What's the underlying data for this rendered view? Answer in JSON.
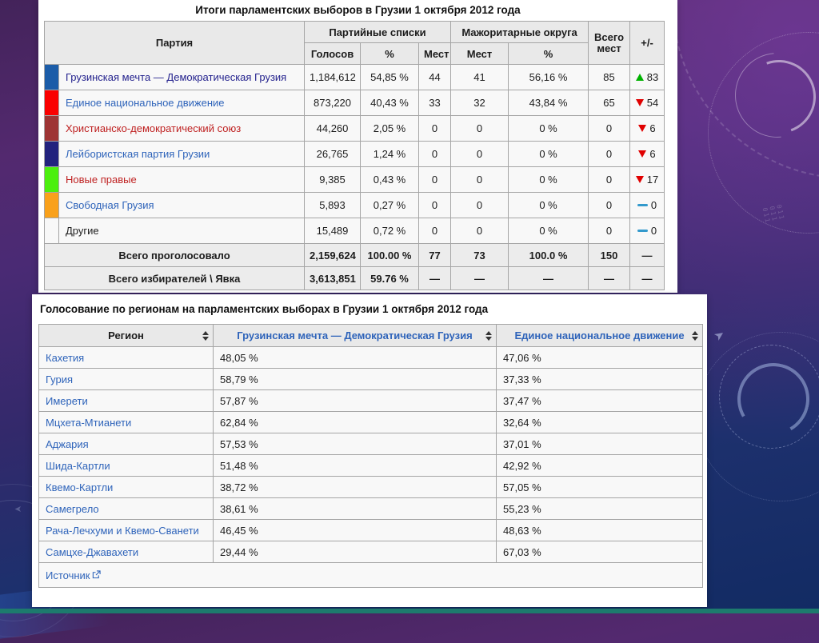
{
  "background": {
    "decor_text": "011 011 011",
    "accent_bar_color": "#1d7b6d"
  },
  "colors": {
    "trend_up": "#00b200",
    "trend_down": "#e00000",
    "trend_steady": "#3399cc",
    "link_blue": "#2f64ba",
    "link_red": "#bf2121",
    "link_visited": "#25238e"
  },
  "results_table": {
    "title": "Итоги парламентских выборов в Грузии 1 октября 2012 года",
    "col_headers": {
      "party": "Партия",
      "party_lists": "Партийные списки",
      "votes": "Голосов",
      "pct": "%",
      "seats": "Мест",
      "majoritarian": "Мажоритарные округа",
      "maj_seats": "Мест",
      "maj_pct": "%",
      "total_seats": "Всего мест",
      "change": "+/-"
    },
    "rows": [
      {
        "name": "Грузинская мечта — Демократическая Грузия",
        "swatch": "#1b5ca8",
        "name_color": "#25238e",
        "votes": "1,184,612",
        "pct": "54,85 %",
        "list_seats": "44",
        "maj_seats": "41",
        "maj_pct": "56,16 %",
        "total_seats": "85",
        "trend": "up",
        "change": "83"
      },
      {
        "name": "Единое национальное движение",
        "swatch": "#fa0000",
        "name_color": "#2f64ba",
        "votes": "873,220",
        "pct": "40,43 %",
        "list_seats": "33",
        "maj_seats": "32",
        "maj_pct": "43,84 %",
        "total_seats": "65",
        "trend": "down",
        "change": "54"
      },
      {
        "name": "Христианско-демократический союз",
        "swatch": "#9e3434",
        "name_color": "#bf2121",
        "votes": "44,260",
        "pct": "2,05 %",
        "list_seats": "0",
        "maj_seats": "0",
        "maj_pct": "0 %",
        "total_seats": "0",
        "trend": "down",
        "change": "6"
      },
      {
        "name": "Лейбористская партия Грузии",
        "swatch": "#22227e",
        "name_color": "#2f64ba",
        "votes": "26,765",
        "pct": "1,24 %",
        "list_seats": "0",
        "maj_seats": "0",
        "maj_pct": "0 %",
        "total_seats": "0",
        "trend": "down",
        "change": "6"
      },
      {
        "name": "Новые правые",
        "swatch": "#4cef0e",
        "name_color": "#bf2121",
        "votes": "9,385",
        "pct": "0,43 %",
        "list_seats": "0",
        "maj_seats": "0",
        "maj_pct": "0 %",
        "total_seats": "0",
        "trend": "down",
        "change": "17"
      },
      {
        "name": "Свободная Грузия",
        "swatch": "#f9a11b",
        "name_color": "#2f64ba",
        "votes": "5,893",
        "pct": "0,27 %",
        "list_seats": "0",
        "maj_seats": "0",
        "maj_pct": "0 %",
        "total_seats": "0",
        "trend": "steady",
        "change": "0"
      },
      {
        "name": "Другие",
        "swatch": "",
        "name_color": "#1c1c1c",
        "votes": "15,489",
        "pct": "0,72 %",
        "list_seats": "0",
        "maj_seats": "0",
        "maj_pct": "0 %",
        "total_seats": "0",
        "trend": "steady",
        "change": "0"
      }
    ],
    "footer": [
      {
        "label": "Всего проголосовало",
        "votes": "2,159,624",
        "pct": "100.00 %",
        "list_seats": "77",
        "maj_seats": "73",
        "maj_pct": "100.0 %",
        "total_seats": "150",
        "change": "—"
      },
      {
        "label": "Всего избирателей \\ Явка",
        "votes": "3,613,851",
        "pct": "59.76 %",
        "list_seats": "—",
        "maj_seats": "—",
        "maj_pct": "—",
        "total_seats": "—",
        "change": "—"
      }
    ]
  },
  "regions_table": {
    "title": "Голосование по регионам на парламентских выборах в Грузии 1 октября 2012 года",
    "headers": [
      "Регион",
      "Грузинская мечта — Демократическая Грузия",
      "Единое национальное движение"
    ],
    "rows": [
      {
        "region": "Кахетия",
        "gd": "48,05 %",
        "unm": "47,06 %"
      },
      {
        "region": "Гурия",
        "gd": "58,79 %",
        "unm": "37,33 %"
      },
      {
        "region": "Имерети",
        "gd": "57,87 %",
        "unm": "37,47 %"
      },
      {
        "region": "Мцхета-Мтианети",
        "gd": "62,84 %",
        "unm": "32,64 %"
      },
      {
        "region": "Аджария",
        "gd": "57,53 %",
        "unm": "37,01 %"
      },
      {
        "region": "Шида-Картли",
        "gd": "51,48 %",
        "unm": "42,92 %"
      },
      {
        "region": "Квемо-Картли",
        "gd": "38,72 %",
        "unm": "57,05 %"
      },
      {
        "region": "Самегрело",
        "gd": "38,61 %",
        "unm": "55,23 %"
      },
      {
        "region": "Рача-Лечхуми и Квемо-Сванети",
        "gd": "46,45 %",
        "unm": "48,63 %"
      },
      {
        "region": "Самцхе-Джавахети",
        "gd": "29,44 %",
        "unm": "67,03 %"
      }
    ],
    "source_label": "Источник"
  }
}
